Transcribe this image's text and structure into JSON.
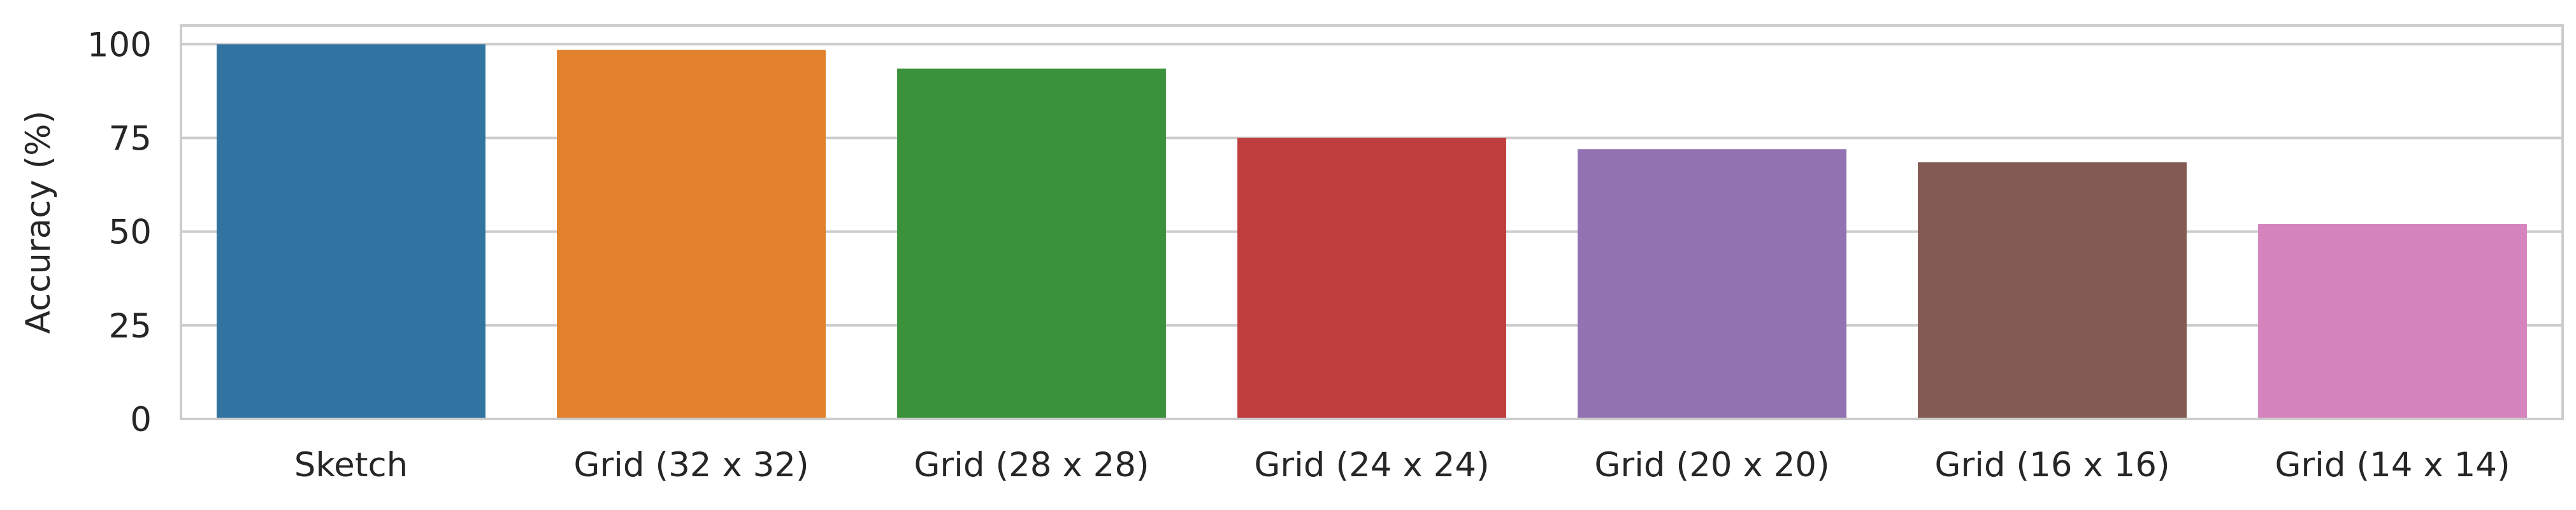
{
  "chart_data": {
    "type": "bar",
    "title": "",
    "xlabel": "",
    "ylabel": "Accuracy (%)",
    "ylim": [
      0,
      105
    ],
    "yticks": [
      0,
      25,
      50,
      75,
      100
    ],
    "grid": true,
    "categories": [
      "Sketch",
      "Grid (32 x 32)",
      "Grid (28 x 28)",
      "Grid (24 x 24)",
      "Grid (20 x 20)",
      "Grid (16 x 16)",
      "Grid (14 x 14)"
    ],
    "values": [
      100,
      98.5,
      93.5,
      75,
      72,
      68.5,
      52
    ],
    "colors": [
      "#3274a1",
      "#e1812c",
      "#3a923a",
      "#c03d3e",
      "#9372b2",
      "#845b53",
      "#d684bd"
    ]
  }
}
